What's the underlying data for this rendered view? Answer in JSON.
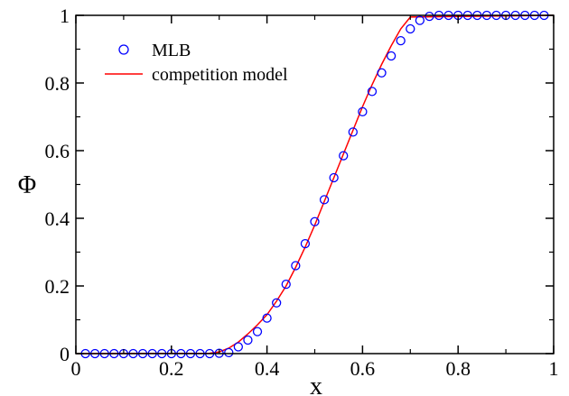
{
  "chart_data": {
    "type": "scatter",
    "xlabel": "x",
    "ylabel": "Φ",
    "xlim": [
      0,
      1
    ],
    "ylim": [
      0,
      1
    ],
    "x_ticks": [
      {
        "value": 0,
        "label": "0"
      },
      {
        "value": 0.2,
        "label": "0.2"
      },
      {
        "value": 0.4,
        "label": "0.4"
      },
      {
        "value": 0.6,
        "label": "0.6"
      },
      {
        "value": 0.8,
        "label": "0.8"
      },
      {
        "value": 1,
        "label": "1"
      }
    ],
    "y_ticks": [
      {
        "value": 0,
        "label": "0"
      },
      {
        "value": 0.2,
        "label": "0.2"
      },
      {
        "value": 0.4,
        "label": "0.4"
      },
      {
        "value": 0.6,
        "label": "0.6"
      },
      {
        "value": 0.8,
        "label": "0.8"
      },
      {
        "value": 1,
        "label": "1"
      }
    ],
    "grid": false,
    "legend_position": "top-left",
    "series": [
      {
        "name": "MLB",
        "kind": "markers",
        "marker": "open-circle",
        "color": "#0000ff",
        "x": [
          0.02,
          0.04,
          0.06,
          0.08,
          0.1,
          0.12,
          0.14,
          0.16,
          0.18,
          0.2,
          0.22,
          0.24,
          0.26,
          0.28,
          0.3,
          0.32,
          0.34,
          0.36,
          0.38,
          0.4,
          0.42,
          0.44,
          0.46,
          0.48,
          0.5,
          0.52,
          0.54,
          0.56,
          0.58,
          0.6,
          0.62,
          0.64,
          0.66,
          0.68,
          0.7,
          0.72,
          0.74,
          0.76,
          0.78,
          0.8,
          0.82,
          0.84,
          0.86,
          0.88,
          0.9,
          0.92,
          0.94,
          0.96,
          0.98
        ],
        "y": [
          0,
          0,
          0,
          0,
          0,
          0,
          0,
          0,
          0,
          0,
          0,
          0,
          0,
          0,
          0.001,
          0.003,
          0.02,
          0.04,
          0.065,
          0.105,
          0.15,
          0.205,
          0.26,
          0.325,
          0.39,
          0.455,
          0.52,
          0.585,
          0.655,
          0.715,
          0.775,
          0.83,
          0.88,
          0.925,
          0.96,
          0.985,
          0.997,
          1,
          1,
          1,
          1,
          1,
          1,
          1,
          1,
          1,
          1,
          1,
          1
        ]
      },
      {
        "name": "competition model",
        "kind": "line",
        "color": "#ff0000",
        "x": [
          0,
          0.28,
          0.3,
          0.32,
          0.34,
          0.36,
          0.38,
          0.4,
          0.42,
          0.44,
          0.46,
          0.48,
          0.5,
          0.52,
          0.54,
          0.56,
          0.58,
          0.6,
          0.62,
          0.64,
          0.66,
          0.68,
          0.7,
          1
        ],
        "y": [
          0,
          0.001,
          0.005,
          0.016,
          0.034,
          0.058,
          0.085,
          0.115,
          0.155,
          0.2,
          0.255,
          0.315,
          0.38,
          0.45,
          0.52,
          0.59,
          0.66,
          0.73,
          0.795,
          0.855,
          0.91,
          0.96,
          0.995,
          1
        ]
      }
    ]
  }
}
